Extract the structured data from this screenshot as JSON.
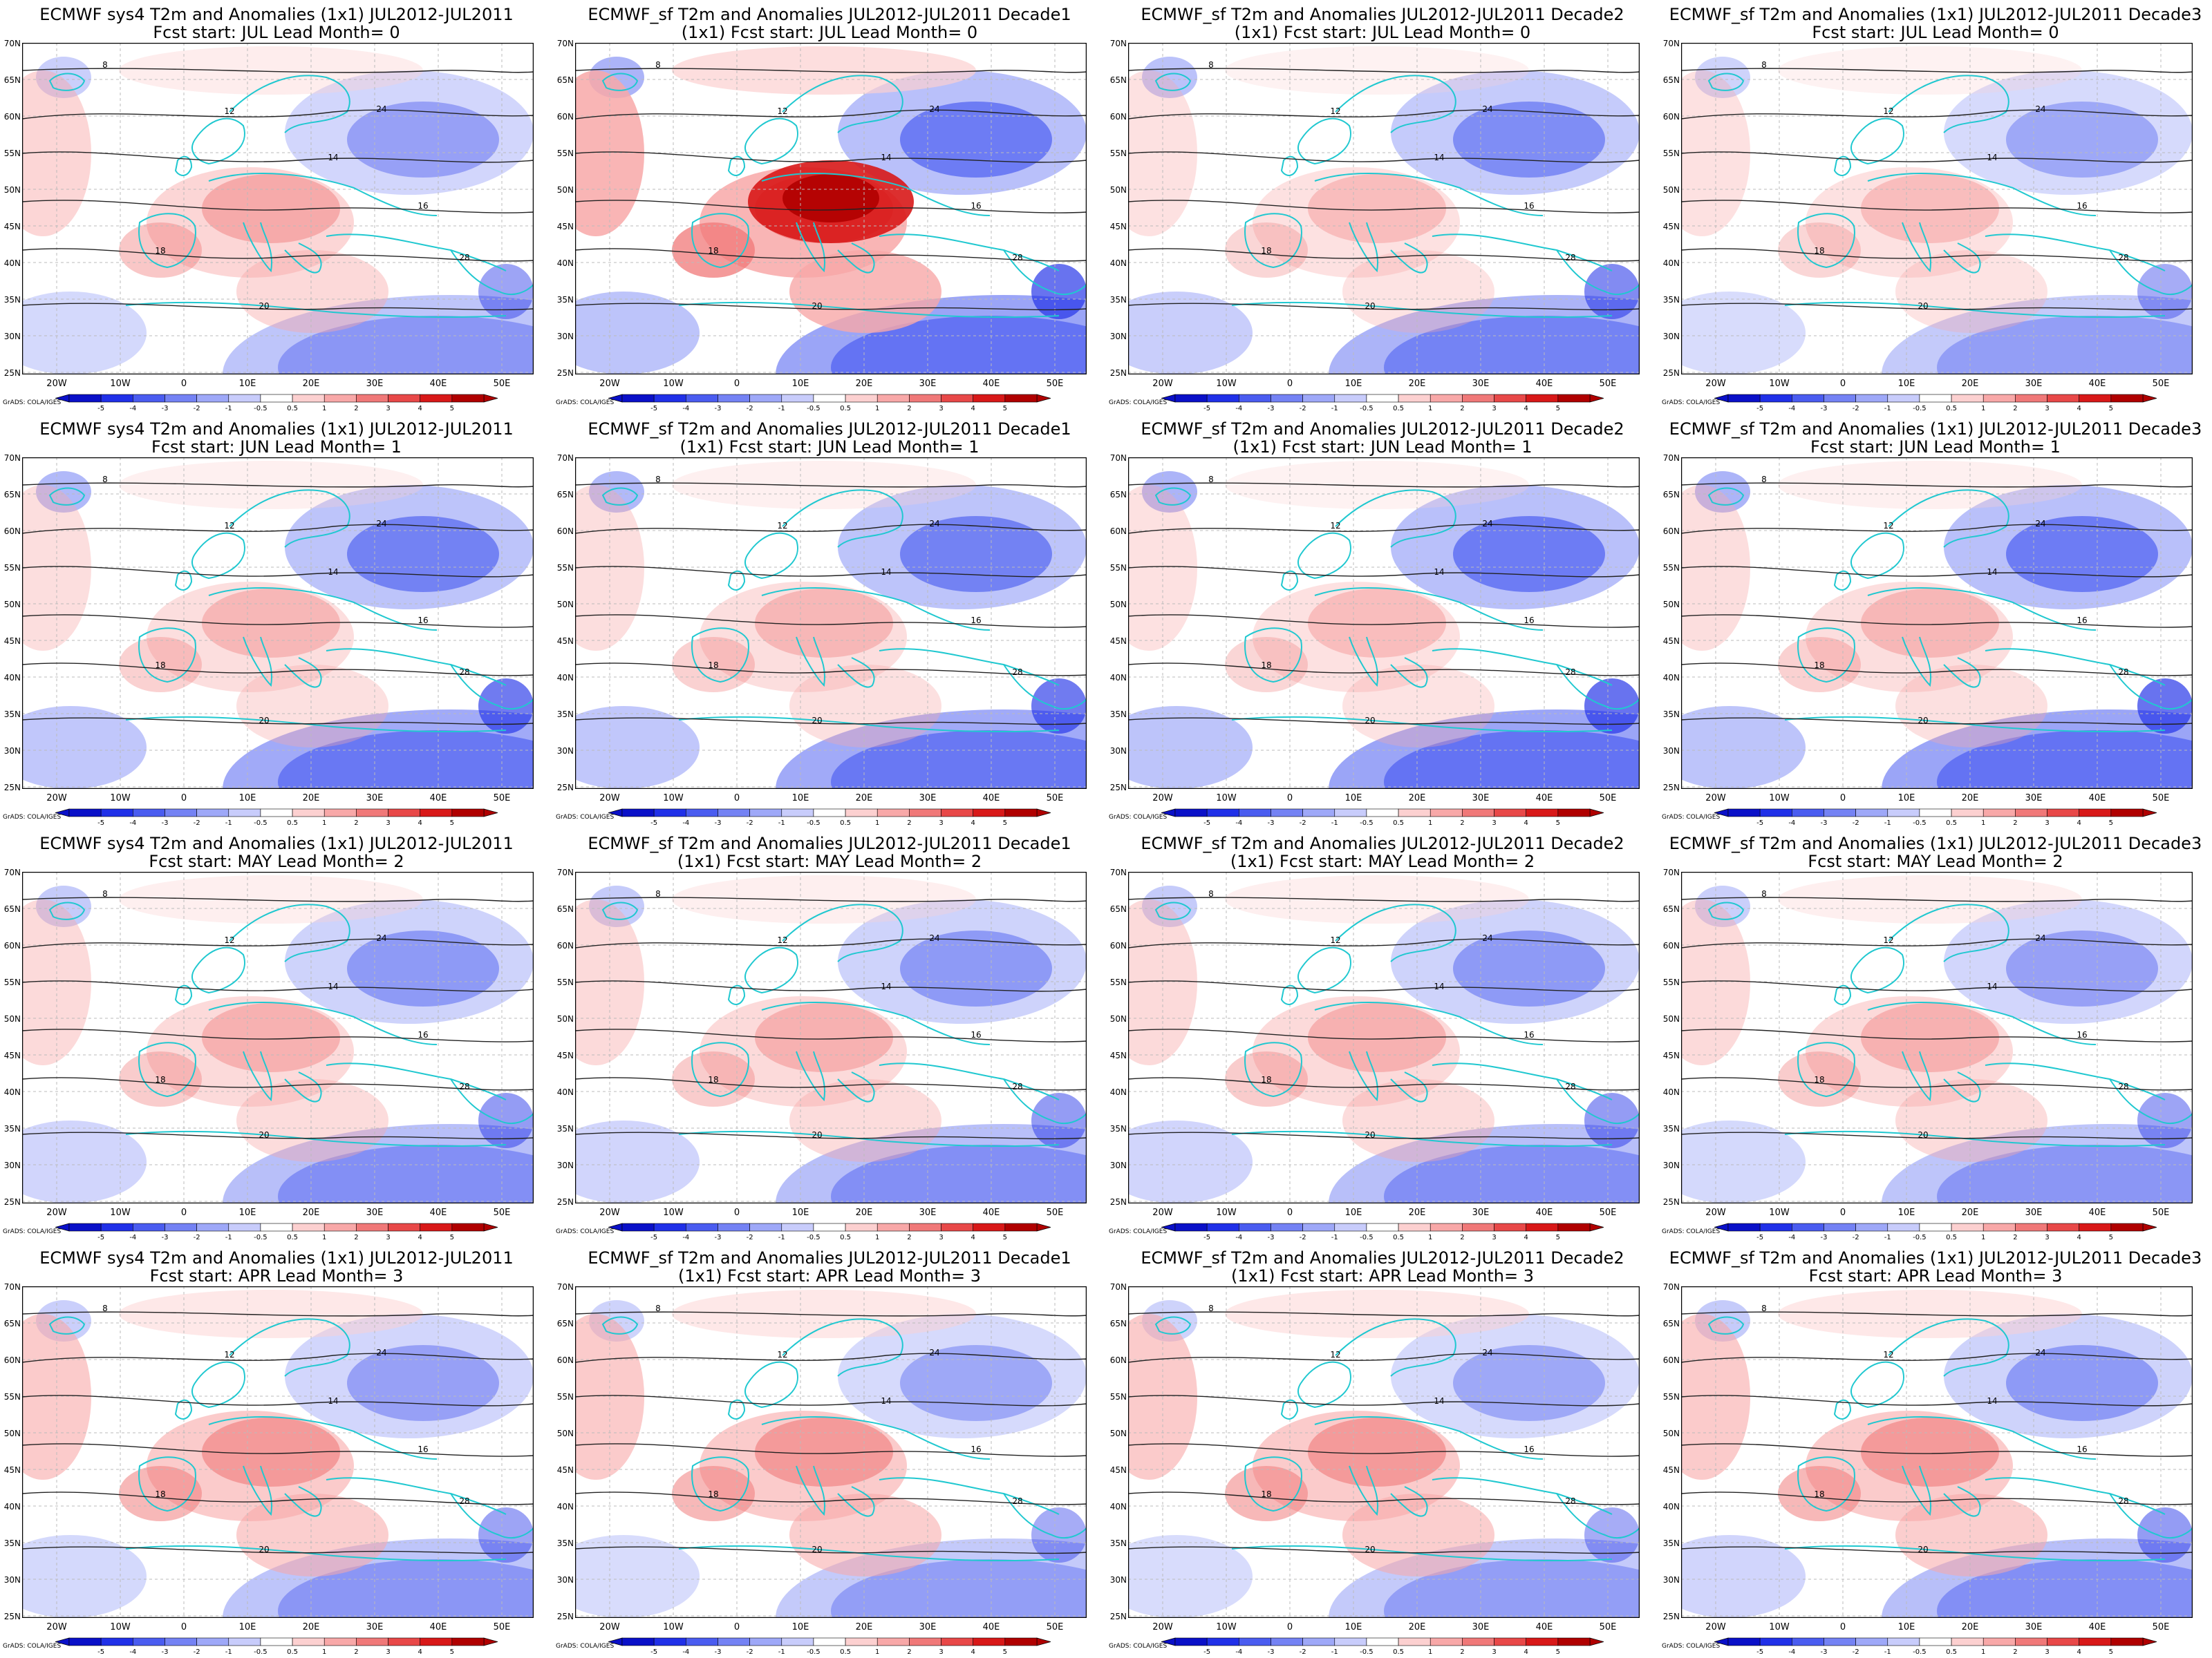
{
  "figure": {
    "lat_labels": [
      "70N",
      "65N",
      "60N",
      "55N",
      "50N",
      "45N",
      "40N",
      "35N",
      "30N",
      "25N"
    ],
    "lon_labels": [
      "20W",
      "10W",
      "0",
      "10E",
      "20E",
      "30E",
      "40E",
      "50E"
    ],
    "colorbar": {
      "tick_labels": [
        "-5",
        "-4",
        "-3",
        "-2",
        "-1",
        "-0.5",
        "0.5",
        "1",
        "2",
        "3",
        "4",
        "5"
      ],
      "colors": [
        "#0a10c8",
        "#2030e8",
        "#4a5cf0",
        "#7482f4",
        "#9ea8f8",
        "#c8ccfb",
        "#ffffff",
        "#fcd0d0",
        "#f8a8a8",
        "#f07878",
        "#e84848",
        "#d81818",
        "#b00000"
      ]
    },
    "credit": "GrADS: COLA/IGES",
    "contour_labels": [
      "8",
      "12",
      "14",
      "16",
      "18",
      "20",
      "24",
      "28"
    ]
  },
  "panels": [
    {
      "title1": "ECMWF sys4 T2m and Anomalies (1x1) JUL2012-JUL2011",
      "title2": "Fcst start: JUL  Lead Month= 0",
      "warm": 0.55,
      "cold": 0.55
    },
    {
      "title1": "ECMWF_sf T2m and Anomalies JUL2012-JUL2011 Decade1",
      "title2": "(1x1) Fcst start: JUL  Lead Month= 0",
      "warm": 1.0,
      "cold": 0.85
    },
    {
      "title1": "ECMWF_sf T2m and Anomalies JUL2012-JUL2011 Decade2",
      "title2": "(1x1) Fcst start: JUL  Lead Month= 0",
      "warm": 0.4,
      "cold": 0.7
    },
    {
      "title1": "ECMWF_sf T2m and Anomalies (1x1) JUL2012-JUL2011 Decade3",
      "title2": "Fcst start: JUL  Lead Month= 0",
      "warm": 0.4,
      "cold": 0.5
    },
    {
      "title1": "ECMWF sys4 T2m and Anomalies (1x1) JUL2012-JUL2011",
      "title2": "Fcst start: JUN  Lead Month= 1",
      "warm": 0.45,
      "cold": 0.8
    },
    {
      "title1": "ECMWF_sf T2m and Anomalies JUL2012-JUL2011 Decade1",
      "title2": "(1x1) Fcst start: JUN  Lead Month= 1",
      "warm": 0.45,
      "cold": 0.8
    },
    {
      "title1": "ECMWF_sf T2m and Anomalies JUL2012-JUL2011 Decade2",
      "title2": "(1x1) Fcst start: JUN  Lead Month= 1",
      "warm": 0.4,
      "cold": 0.85
    },
    {
      "title1": "ECMWF_sf T2m and Anomalies (1x1) JUL2012-JUL2011 Decade3",
      "title2": "Fcst start: JUN  Lead Month= 1",
      "warm": 0.45,
      "cold": 0.85
    },
    {
      "title1": "ECMWF sys4 T2m and Anomalies (1x1) JUL2012-JUL2011",
      "title2": "Fcst start: MAY  Lead Month= 2",
      "warm": 0.5,
      "cold": 0.6
    },
    {
      "title1": "ECMWF_sf T2m and Anomalies JUL2012-JUL2011 Decade1",
      "title2": "(1x1) Fcst start: MAY  Lead Month= 2",
      "warm": 0.5,
      "cold": 0.6
    },
    {
      "title1": "ECMWF_sf T2m and Anomalies JUL2012-JUL2011 Decade2",
      "title2": "(1x1) Fcst start: MAY  Lead Month= 2",
      "warm": 0.5,
      "cold": 0.6
    },
    {
      "title1": "ECMWF_sf T2m and Anomalies (1x1) JUL2012-JUL2011 Decade3",
      "title2": "Fcst start: MAY  Lead Month= 2",
      "warm": 0.5,
      "cold": 0.55
    },
    {
      "title1": "ECMWF sys4 T2m and Anomalies (1x1) JUL2012-JUL2011",
      "title2": "Fcst start: APR  Lead Month= 3",
      "warm": 0.7,
      "cold": 0.55
    },
    {
      "title1": "ECMWF_sf T2m and Anomalies JUL2012-JUL2011 Decade1",
      "title2": "(1x1) Fcst start: APR  Lead Month= 3",
      "warm": 0.7,
      "cold": 0.5
    },
    {
      "title1": "ECMWF_sf T2m and Anomalies JUL2012-JUL2011 Decade2",
      "title2": "(1x1) Fcst start: APR  Lead Month= 3",
      "warm": 0.7,
      "cold": 0.5
    },
    {
      "title1": "ECMWF_sf T2m and Anomalies (1x1) JUL2012-JUL2011 Decade3",
      "title2": "Fcst start: APR  Lead Month= 3",
      "warm": 0.7,
      "cold": 0.6
    }
  ]
}
